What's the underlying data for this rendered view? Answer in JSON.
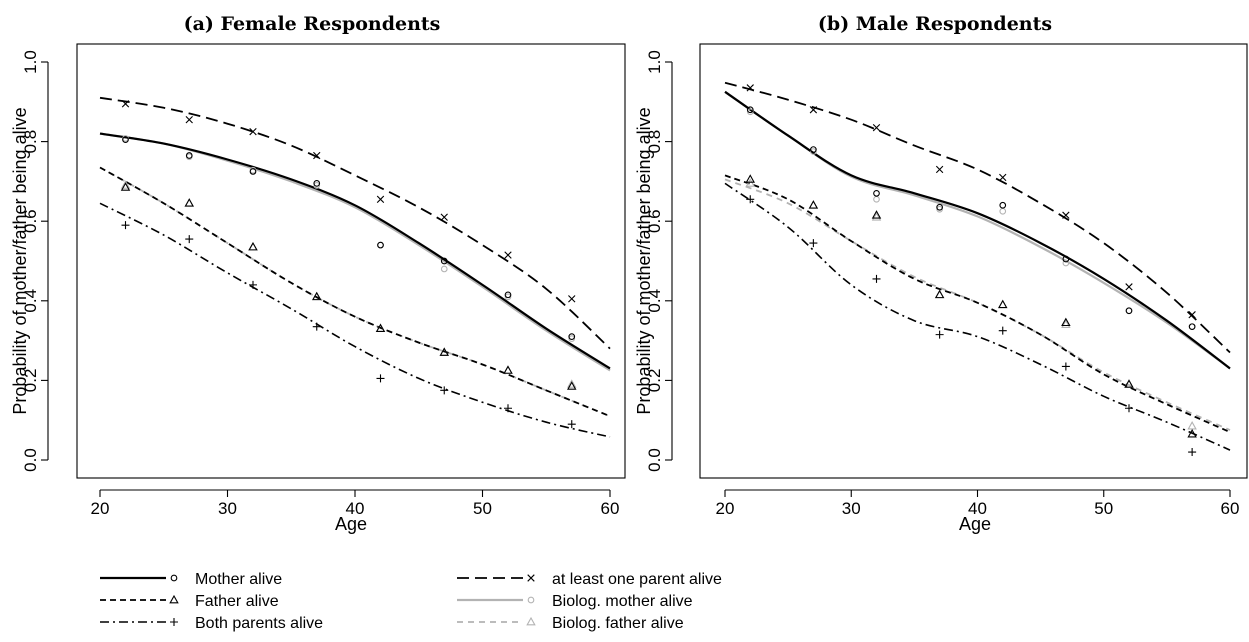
{
  "colors": {
    "black": "#000000",
    "grey": "#b3b3b3"
  },
  "chart_data": [
    {
      "type": "line",
      "title": "(a) Female Respondents",
      "xlabel": "Age",
      "ylabel": "Probability of mother/father being alive",
      "xlim": [
        20,
        60
      ],
      "ylim": [
        0,
        1
      ],
      "x_ticks": [
        20,
        30,
        40,
        50,
        60
      ],
      "y_ticks": [
        0.0,
        0.2,
        0.4,
        0.6,
        0.8,
        1.0
      ],
      "y_tick_labels": [
        "0.0",
        "0.2",
        "0.4",
        "0.6",
        "0.8",
        "1.0"
      ],
      "grid": false,
      "series": [
        {
          "key": "mother",
          "name": "Mother alive",
          "curve": {
            "x": [
              20,
              25,
              30,
              35,
              40,
              45,
              50,
              55,
              60
            ],
            "y": [
              0.82,
              0.795,
              0.755,
              0.705,
              0.64,
              0.545,
              0.44,
              0.33,
              0.23
            ]
          },
          "points": {
            "x": [
              22,
              27,
              32,
              37,
              42,
              47,
              52,
              57
            ],
            "y": [
              0.805,
              0.765,
              0.725,
              0.695,
              0.54,
              0.5,
              0.415,
              0.31
            ]
          }
        },
        {
          "key": "father",
          "name": "Father alive",
          "curve": {
            "x": [
              20,
              25,
              30,
              35,
              40,
              45,
              50,
              55,
              60
            ],
            "y": [
              0.735,
              0.645,
              0.545,
              0.445,
              0.36,
              0.295,
              0.24,
              0.175,
              0.11
            ]
          },
          "points": {
            "x": [
              22,
              27,
              32,
              37,
              42,
              47,
              52,
              57
            ],
            "y": [
              0.685,
              0.645,
              0.535,
              0.41,
              0.33,
              0.27,
              0.225,
              0.185
            ]
          }
        },
        {
          "key": "both",
          "name": "Both parents alive",
          "curve": {
            "x": [
              20,
              25,
              30,
              35,
              40,
              45,
              50,
              55,
              60
            ],
            "y": [
              0.645,
              0.565,
              0.47,
              0.38,
              0.285,
              0.205,
              0.145,
              0.095,
              0.058
            ]
          },
          "points": {
            "x": [
              22,
              27,
              32,
              37,
              42,
              47,
              52,
              57
            ],
            "y": [
              0.59,
              0.555,
              0.44,
              0.335,
              0.205,
              0.175,
              0.13,
              0.09
            ]
          }
        },
        {
          "key": "atleast",
          "name": "at least one parent alive",
          "curve": {
            "x": [
              20,
              25,
              30,
              35,
              40,
              45,
              50,
              55,
              60
            ],
            "y": [
              0.91,
              0.885,
              0.845,
              0.79,
              0.715,
              0.635,
              0.54,
              0.43,
              0.28
            ]
          },
          "points": {
            "x": [
              22,
              27,
              32,
              37,
              42,
              47,
              52,
              57
            ],
            "y": [
              0.895,
              0.855,
              0.825,
              0.765,
              0.655,
              0.61,
              0.515,
              0.405
            ]
          }
        },
        {
          "key": "biomother",
          "name": "Biolog. mother alive",
          "curve": {
            "x": [
              20,
              25,
              30,
              35,
              40,
              45,
              50,
              55,
              60
            ],
            "y": [
              0.82,
              0.795,
              0.752,
              0.7,
              0.635,
              0.54,
              0.435,
              0.325,
              0.225
            ]
          },
          "points": {
            "x": [
              22,
              27,
              32,
              37,
              42,
              47,
              52,
              57
            ],
            "y": [
              0.808,
              0.762,
              0.728,
              0.69,
              0.54,
              0.48,
              0.41,
              0.305
            ]
          }
        },
        {
          "key": "biofather",
          "name": "Biolog. father alive",
          "curve": {
            "x": [
              20,
              25,
              30,
              35,
              40,
              45,
              50,
              55,
              60
            ],
            "y": [
              0.735,
              0.645,
              0.545,
              0.445,
              0.36,
              0.295,
              0.24,
              0.175,
              0.11
            ]
          },
          "points": {
            "x": [
              22,
              27,
              32,
              37,
              42,
              47,
              52,
              57
            ],
            "y": [
              0.69,
              0.645,
              0.535,
              0.41,
              0.33,
              0.27,
              0.225,
              0.19
            ]
          }
        }
      ]
    },
    {
      "type": "line",
      "title": "(b) Male Respondents",
      "xlabel": "Age",
      "ylabel": "Probability of mother/father being alive",
      "xlim": [
        20,
        60
      ],
      "ylim": [
        0,
        1
      ],
      "x_ticks": [
        20,
        30,
        40,
        50,
        60
      ],
      "y_ticks": [
        0.0,
        0.2,
        0.4,
        0.6,
        0.8,
        1.0
      ],
      "y_tick_labels": [
        "0.0",
        "0.2",
        "0.4",
        "0.6",
        "0.8",
        "1.0"
      ],
      "grid": false,
      "series": [
        {
          "key": "mother",
          "name": "Mother alive",
          "curve": {
            "x": [
              20,
              25,
              30,
              35,
              40,
              45,
              50,
              55,
              60
            ],
            "y": [
              0.925,
              0.815,
              0.715,
              0.67,
              0.62,
              0.545,
              0.455,
              0.35,
              0.23
            ]
          },
          "points": {
            "x": [
              22,
              27,
              32,
              37,
              42,
              47,
              52,
              57
            ],
            "y": [
              0.88,
              0.78,
              0.67,
              0.635,
              0.64,
              0.505,
              0.375,
              0.335
            ]
          }
        },
        {
          "key": "father",
          "name": "Father alive",
          "curve": {
            "x": [
              20,
              25,
              30,
              35,
              40,
              45,
              50,
              55,
              60
            ],
            "y": [
              0.715,
              0.655,
              0.55,
              0.455,
              0.395,
              0.315,
              0.215,
              0.14,
              0.07
            ]
          },
          "points": {
            "x": [
              22,
              27,
              32,
              37,
              42,
              47,
              52,
              57
            ],
            "y": [
              0.705,
              0.64,
              0.615,
              0.415,
              0.39,
              0.345,
              0.19,
              0.065
            ]
          }
        },
        {
          "key": "both",
          "name": "Both parents alive",
          "curve": {
            "x": [
              20,
              25,
              30,
              35,
              40,
              45,
              50,
              55,
              60
            ],
            "y": [
              0.695,
              0.585,
              0.44,
              0.35,
              0.31,
              0.24,
              0.16,
              0.095,
              0.025
            ]
          },
          "points": {
            "x": [
              22,
              27,
              32,
              37,
              42,
              47,
              52,
              57
            ],
            "y": [
              0.655,
              0.545,
              0.455,
              0.315,
              0.325,
              0.235,
              0.13,
              0.02
            ]
          }
        },
        {
          "key": "atleast",
          "name": "at least one parent alive",
          "curve": {
            "x": [
              20,
              25,
              30,
              35,
              40,
              45,
              50,
              55,
              60
            ],
            "y": [
              0.948,
              0.905,
              0.855,
              0.79,
              0.73,
              0.645,
              0.545,
              0.42,
              0.27
            ]
          },
          "points": {
            "x": [
              22,
              27,
              32,
              37,
              42,
              47,
              52,
              57
            ],
            "y": [
              0.935,
              0.88,
              0.835,
              0.73,
              0.71,
              0.615,
              0.435,
              0.365
            ]
          }
        },
        {
          "key": "biomother",
          "name": "Biolog. mother alive",
          "curve": {
            "x": [
              20,
              25,
              30,
              35,
              40,
              45,
              50,
              55,
              60
            ],
            "y": [
              0.925,
              0.815,
              0.712,
              0.665,
              0.612,
              0.535,
              0.445,
              0.345,
              0.23
            ]
          },
          "points": {
            "x": [
              22,
              27,
              32,
              37,
              42,
              47,
              52,
              57
            ],
            "y": [
              0.875,
              0.775,
              0.655,
              0.63,
              0.625,
              0.495,
              0.375,
              0.335
            ]
          }
        },
        {
          "key": "biofather",
          "name": "Biolog. father alive",
          "curve": {
            "x": [
              20,
              25,
              30,
              35,
              40,
              45,
              50,
              55,
              60
            ],
            "y": [
              0.705,
              0.645,
              0.55,
              0.46,
              0.395,
              0.315,
              0.22,
              0.145,
              0.075
            ]
          },
          "points": {
            "x": [
              22,
              27,
              32,
              37,
              42,
              47,
              52,
              57
            ],
            "y": [
              0.695,
              0.64,
              0.61,
              0.415,
              0.39,
              0.34,
              0.19,
              0.085
            ]
          }
        }
      ]
    }
  ],
  "legend": {
    "placement": "bottom-left",
    "items": [
      {
        "key": "mother",
        "label": "Mother alive"
      },
      {
        "key": "father",
        "label": "Father alive"
      },
      {
        "key": "both",
        "label": "Both parents alive"
      },
      {
        "key": "atleast",
        "label": "at least one parent alive"
      },
      {
        "key": "biomother",
        "label": "Biolog. mother alive"
      },
      {
        "key": "biofather",
        "label": "Biolog. father alive"
      }
    ]
  }
}
